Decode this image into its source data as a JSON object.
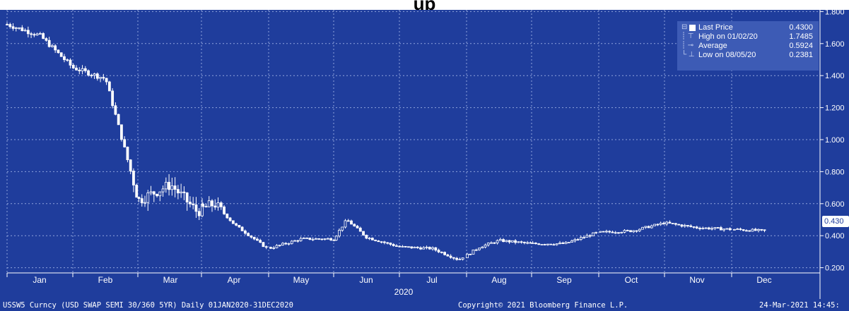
{
  "page": {
    "title": "up"
  },
  "chart_data": {
    "type": "candlestick",
    "title": "",
    "xlabel": "2020",
    "ylabel": "",
    "ylim": [
      0.1,
      1.85
    ],
    "y_ticks": [
      "0.200",
      "0.400",
      "0.600",
      "0.800",
      "1.000",
      "1.200",
      "1.400",
      "1.600",
      "1.800"
    ],
    "x_tick_labels": [
      "Jan",
      "Feb",
      "Mar",
      "Apr",
      "May",
      "Jun",
      "Jul",
      "Aug",
      "Sep",
      "Oct",
      "Nov",
      "Dec"
    ],
    "x_year_label": "2020",
    "grid": true,
    "legend_position": "top-right",
    "series": [
      {
        "name": "Last Price",
        "x_months": [
          0.0,
          0.5,
          1.0,
          1.5,
          2.0,
          2.5,
          2.9,
          3.2,
          3.5,
          4.0,
          4.5,
          5.0,
          5.2,
          5.5,
          6.0,
          6.5,
          6.9,
          7.2,
          7.5,
          8.0,
          8.5,
          9.0,
          9.5,
          10.0,
          10.5,
          11.0,
          11.5
        ],
        "values": [
          1.72,
          1.65,
          1.45,
          1.38,
          0.62,
          0.72,
          0.55,
          0.6,
          0.47,
          0.32,
          0.38,
          0.38,
          0.5,
          0.39,
          0.33,
          0.32,
          0.25,
          0.33,
          0.37,
          0.35,
          0.35,
          0.42,
          0.43,
          0.48,
          0.45,
          0.44,
          0.43
        ]
      }
    ],
    "legend": {
      "last_price_label": "Last Price",
      "last_price_value": "0.4300",
      "high_label": "High on 01/02/20",
      "high_value": "1.7485",
      "average_label": "Average",
      "average_value": "0.5924",
      "low_label": "Low on 08/05/20",
      "low_value": "0.2381"
    },
    "last_value_tag": "0.430"
  },
  "footer": {
    "security": "USSW5 Curncy (USD SWAP SEMI 30/360 5YR)  Daily 01JAN2020-31DEC2020",
    "copyright": "Copyright© 2021 Bloomberg Finance L.P.",
    "timestamp": "24-Mar-2021 14:45:"
  },
  "colors": {
    "background": "#1f3d9c",
    "grid": "#8fa3dc",
    "price": "#ffffff",
    "legend_bg": "#3d5bb5"
  }
}
